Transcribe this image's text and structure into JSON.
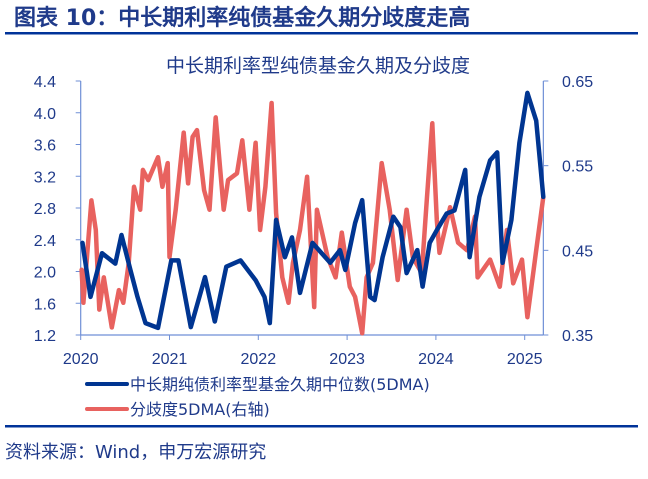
{
  "header": {
    "title": "图表 10：中长期利率纯债基金久期分歧度走高"
  },
  "source": "资料来源：Wind，申万宏源研究",
  "colors": {
    "text": "#1f3a8a",
    "rule": "#003399",
    "axis": "#6f8fd6"
  },
  "chart_data": {
    "type": "line",
    "title": "中长期利率型纯债基金久期及分歧度",
    "grid": false,
    "legend_placement": "bottom",
    "x_ticks": [
      "2020",
      "2021",
      "2022",
      "2023",
      "2024",
      "2025"
    ],
    "xlim": [
      2020,
      2025.21
    ],
    "y_left": {
      "ticks": [
        "1.2",
        "1.6",
        "2.0",
        "2.4",
        "2.8",
        "3.2",
        "3.6",
        "4.0",
        "4.4"
      ],
      "ylim": [
        1.2,
        4.4
      ]
    },
    "y_right": {
      "ticks": [
        "0.35",
        "0.45",
        "0.55",
        "0.65"
      ],
      "ylim": [
        0.35,
        0.65
      ]
    },
    "series": [
      {
        "name": "中长期纯债利率型基金久期中位数(5DMA)",
        "axis": "left",
        "color": "#003591",
        "x": [
          2020.02,
          2020.11,
          2020.24,
          2020.39,
          2020.46,
          2020.56,
          2020.64,
          2020.73,
          2020.87,
          2021.02,
          2021.1,
          2021.24,
          2021.4,
          2021.51,
          2021.64,
          2021.8,
          2021.97,
          2022.07,
          2022.13,
          2022.2,
          2022.3,
          2022.38,
          2022.47,
          2022.61,
          2022.81,
          2022.92,
          2022.98,
          2023.09,
          2023.17,
          2023.26,
          2023.31,
          2023.4,
          2023.52,
          2023.6,
          2023.67,
          2023.79,
          2023.85,
          2023.93,
          2024.01,
          2024.12,
          2024.21,
          2024.33,
          2024.38,
          2024.49,
          2024.61,
          2024.69,
          2024.75,
          2024.85,
          2024.94,
          2025.03,
          2025.13,
          2025.21
        ],
        "y": [
          2.36,
          1.68,
          2.23,
          2.1,
          2.46,
          2.02,
          1.68,
          1.35,
          1.29,
          2.14,
          2.14,
          1.3,
          1.93,
          1.37,
          2.06,
          2.14,
          1.89,
          1.68,
          1.35,
          2.65,
          2.18,
          2.43,
          1.73,
          2.36,
          2.11,
          2.27,
          2.02,
          2.61,
          2.9,
          1.68,
          1.64,
          2.18,
          2.69,
          2.56,
          1.98,
          2.27,
          1.81,
          2.36,
          2.52,
          2.73,
          2.77,
          3.28,
          2.18,
          2.94,
          3.4,
          3.5,
          2.11,
          2.65,
          3.62,
          4.25,
          3.9,
          2.94
        ]
      },
      {
        "name": "分歧度5DMA(右轴)",
        "axis": "right",
        "color": "#e8625f",
        "x": [
          2020.01,
          2020.03,
          2020.12,
          2020.17,
          2020.21,
          2020.26,
          2020.35,
          2020.43,
          2020.48,
          2020.54,
          2020.6,
          2020.67,
          2020.7,
          2020.76,
          2020.87,
          2020.92,
          2020.98,
          2021.0,
          2021.07,
          2021.16,
          2021.21,
          2021.26,
          2021.31,
          2021.39,
          2021.45,
          2021.52,
          2021.61,
          2021.66,
          2021.76,
          2021.82,
          2021.9,
          2021.97,
          2022.02,
          2022.08,
          2022.15,
          2022.2,
          2022.27,
          2022.34,
          2022.39,
          2022.47,
          2022.55,
          2022.63,
          2022.66,
          2022.78,
          2022.87,
          2022.94,
          2023.03,
          2023.09,
          2023.17,
          2023.22,
          2023.29,
          2023.39,
          2023.48,
          2023.57,
          2023.67,
          2023.74,
          2023.84,
          2023.9,
          2023.96,
          2024.01,
          2024.04,
          2024.16,
          2024.25,
          2024.35,
          2024.44,
          2024.47,
          2024.61,
          2024.72,
          2024.8,
          2024.87,
          2024.97,
          2025.03,
          2025.13,
          2025.21
        ],
        "y": [
          0.427,
          0.388,
          0.509,
          0.474,
          0.38,
          0.418,
          0.359,
          0.403,
          0.388,
          0.435,
          0.525,
          0.498,
          0.545,
          0.533,
          0.56,
          0.525,
          0.553,
          0.442,
          0.498,
          0.589,
          0.529,
          0.584,
          0.592,
          0.521,
          0.498,
          0.607,
          0.498,
          0.533,
          0.541,
          0.58,
          0.498,
          0.577,
          0.474,
          0.525,
          0.624,
          0.494,
          0.418,
          0.388,
          0.435,
          0.474,
          0.537,
          0.383,
          0.498,
          0.442,
          0.418,
          0.471,
          0.407,
          0.395,
          0.352,
          0.418,
          0.435,
          0.553,
          0.498,
          0.415,
          0.498,
          0.442,
          0.423,
          0.513,
          0.6,
          0.486,
          0.447,
          0.501,
          0.459,
          0.45,
          0.49,
          0.418,
          0.439,
          0.407,
          0.474,
          0.411,
          0.439,
          0.371,
          0.45,
          0.513
        ]
      }
    ]
  }
}
